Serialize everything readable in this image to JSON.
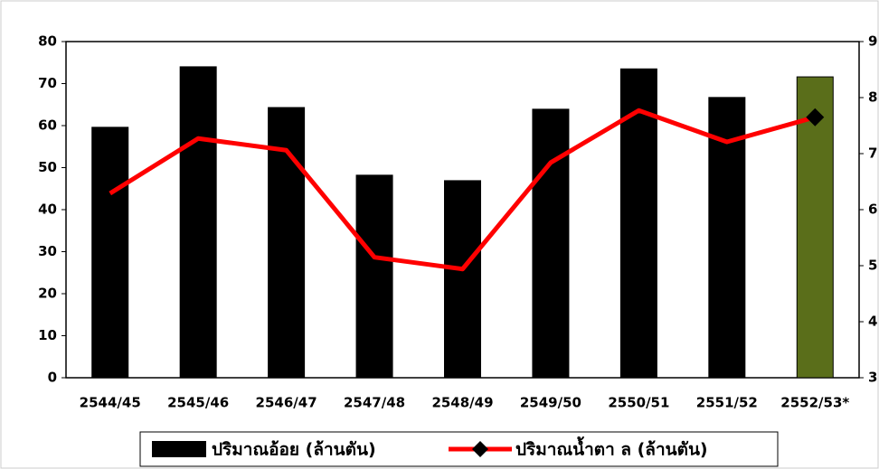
{
  "chart_data": {
    "type": "bar-line",
    "categories": [
      "2544/45",
      "2545/46",
      "2546/47",
      "2547/48",
      "2548/49",
      "2549/50",
      "2550/51",
      "2551/52",
      "2552/53*"
    ],
    "series": [
      {
        "name": "ปริมาณอ้อย (ล้านตัน)",
        "type": "bar",
        "color": "#000000",
        "colors": [
          "#000000",
          "#000000",
          "#000000",
          "#000000",
          "#000000",
          "#000000",
          "#000000",
          "#000000",
          "#5a6e1a"
        ],
        "values": [
          59.6,
          74,
          64.3,
          48.2,
          46.9,
          63.9,
          73.5,
          66.7,
          71.6
        ]
      },
      {
        "name": "ปริมาณน้ำตา ล (ล้านตัน)",
        "type": "line",
        "color": "#ff0000",
        "axis": "y2",
        "values": [
          6.29,
          7.27,
          7.06,
          5.15,
          4.94,
          6.84,
          7.77,
          7.21,
          7.65
        ]
      }
    ],
    "ylim": [
      0,
      80
    ],
    "yticks": [
      0,
      10,
      20,
      30,
      40,
      50,
      60,
      70,
      80
    ],
    "y2lim": [
      3,
      9
    ],
    "y2ticks": [
      3,
      4,
      5,
      6,
      7,
      8,
      9
    ],
    "legend": "bottom"
  }
}
